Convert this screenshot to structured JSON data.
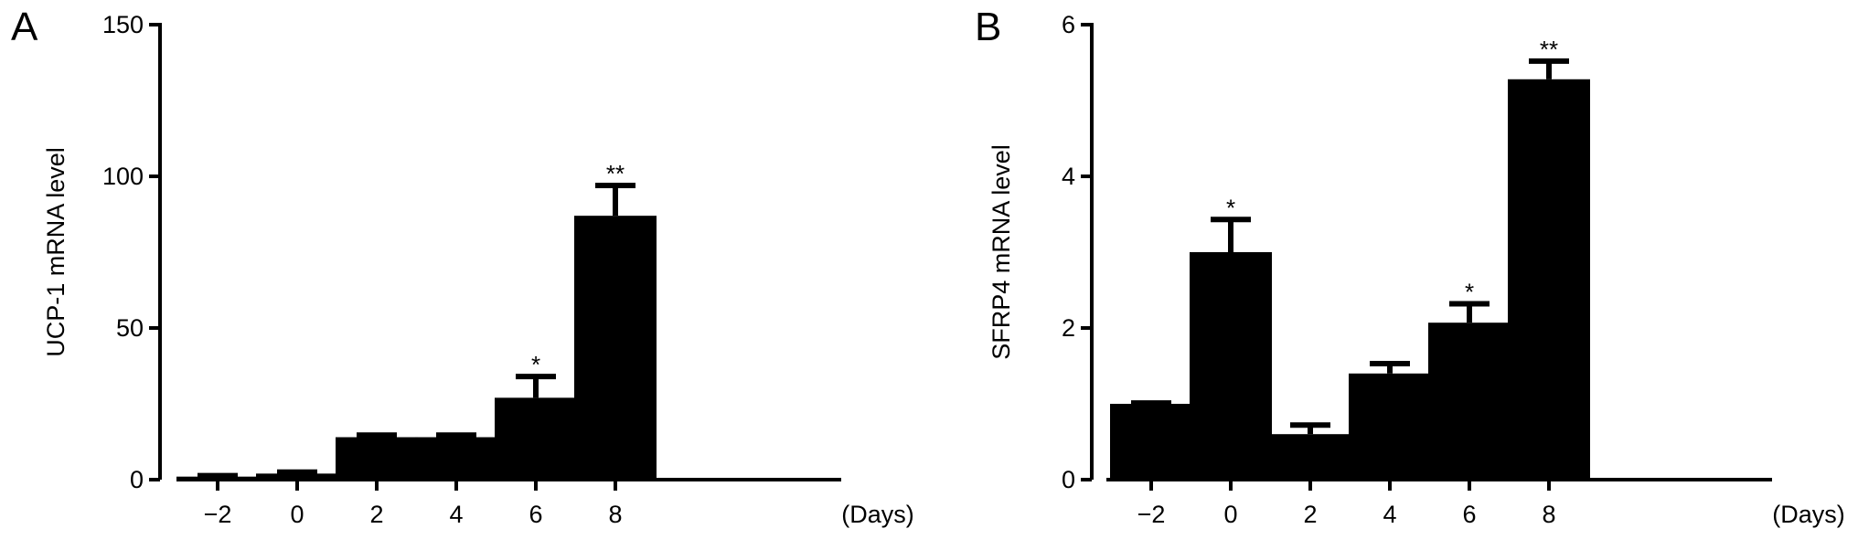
{
  "panels": [
    {
      "letter": "A"
    },
    {
      "letter": "B"
    }
  ],
  "chart_data": [
    {
      "type": "bar",
      "panel": "A",
      "categories": [
        "−2",
        "0",
        "2",
        "4",
        "6",
        "8"
      ],
      "x_unit_label": "(Days)",
      "xlabel": "",
      "ylabel": "UCP-1 mRNA level",
      "ylim": [
        0,
        150
      ],
      "yticks": [
        0,
        50,
        100,
        150
      ],
      "values": [
        1,
        2,
        14,
        14,
        27,
        87
      ],
      "errors": [
        0.3,
        0.5,
        0.7,
        0.7,
        7,
        10
      ],
      "significance": [
        "",
        "",
        "",
        "",
        "*",
        "**"
      ],
      "grid": false,
      "legend": "none",
      "bar_color": "#000000"
    },
    {
      "type": "bar",
      "panel": "B",
      "categories": [
        "−2",
        "0",
        "2",
        "4",
        "6",
        "8"
      ],
      "x_unit_label": "(Days)",
      "xlabel": "",
      "ylabel": "SFRP4 mRNA level",
      "ylim": [
        0,
        6
      ],
      "yticks": [
        0,
        2,
        4,
        6
      ],
      "values": [
        1.0,
        3.0,
        0.6,
        1.4,
        2.07,
        5.28
      ],
      "errors": [
        0.01,
        0.43,
        0.12,
        0.13,
        0.25,
        0.24
      ],
      "significance": [
        "",
        "*",
        "",
        "",
        "*",
        "**"
      ],
      "grid": false,
      "legend": "none",
      "bar_color": "#000000"
    }
  ]
}
